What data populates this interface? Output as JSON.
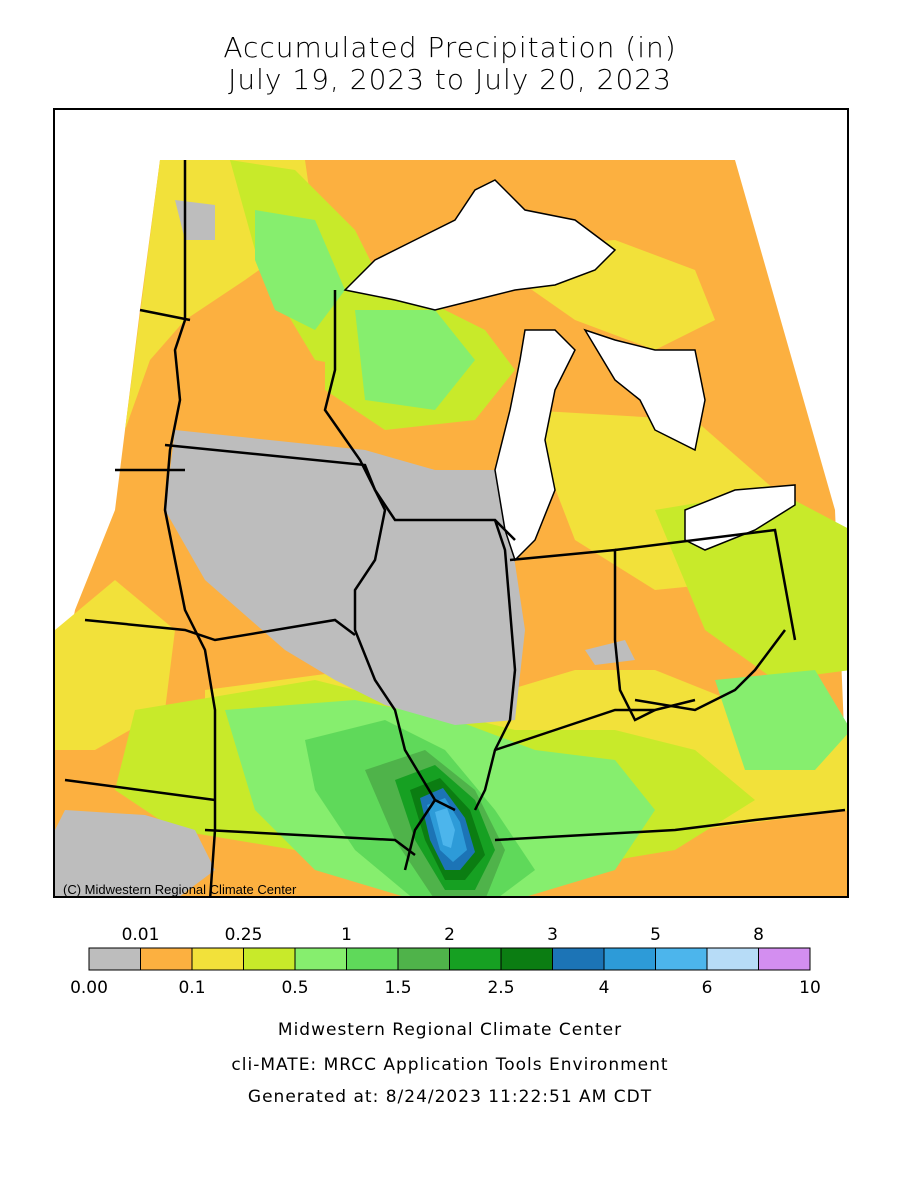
{
  "title": {
    "line1": "Accumulated Precipitation (in)",
    "line2": "July 19, 2023 to July 20, 2023"
  },
  "map": {
    "copyright": "(C) Midwestern Regional Climate Center",
    "background_colors": {
      "land_gray": "#bdbdbd",
      "lake": "#ffffff",
      "border": "#000000"
    }
  },
  "legend": {
    "top_labels": [
      "0.01",
      "0.25",
      "1",
      "2",
      "3",
      "5",
      "8"
    ],
    "bottom_labels": [
      "0.00",
      "0.1",
      "0.5",
      "1.5",
      "2.5",
      "4",
      "6",
      "10"
    ],
    "colors": [
      "#bdbdbd",
      "#fcb040",
      "#f2e13a",
      "#c8ea2a",
      "#86ee6e",
      "#5fd95a",
      "#4fb34a",
      "#16a022",
      "#0b7d12",
      "#1c74b6",
      "#2d9bd8",
      "#4cb5ec",
      "#b7dcf7",
      "#d38ef0"
    ]
  },
  "footer": {
    "line1": "Midwestern Regional Climate Center",
    "line2": "cli-MATE: MRCC Application Tools Environment",
    "line3": "Generated at: 8/24/2023 11:22:51 AM CDT"
  }
}
